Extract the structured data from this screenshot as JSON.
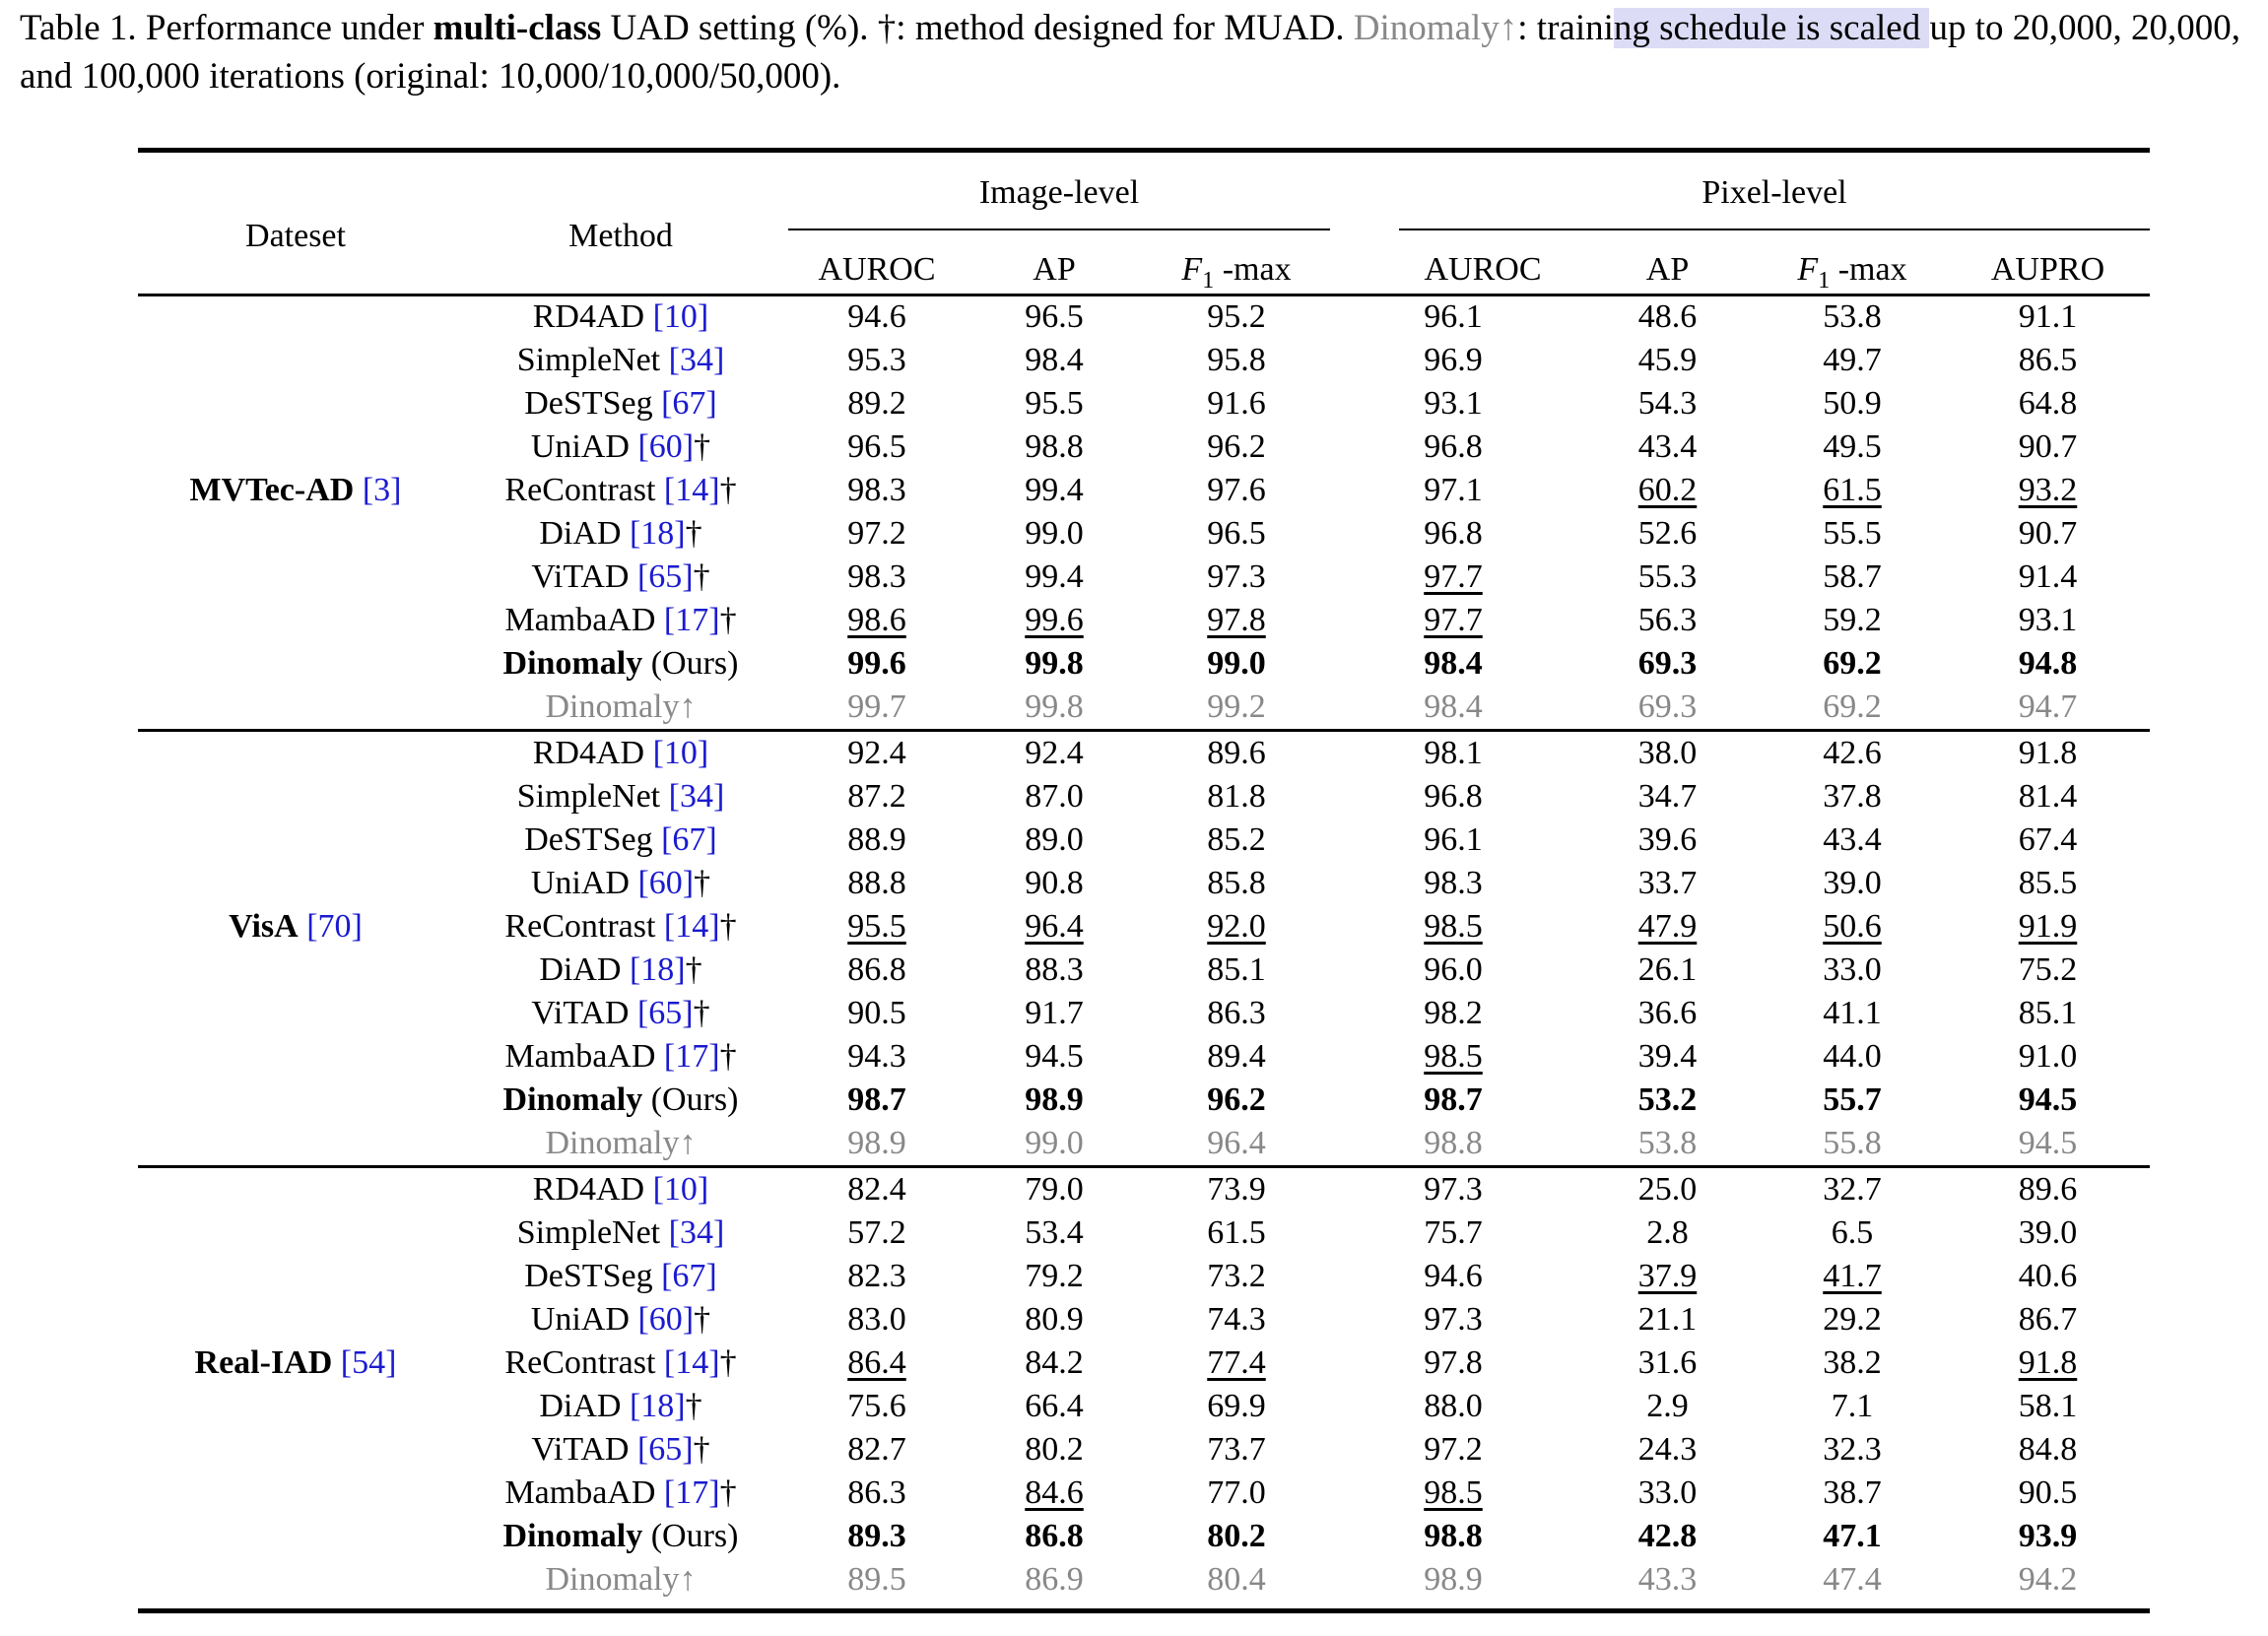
{
  "caption": {
    "part1": "Table 1. Performance under ",
    "bold": "multi-class",
    "part2": " UAD setting (%). †: method designed for MUAD. ",
    "gray": "Dinomaly↑",
    "part3": ": traini",
    "highlight": "ng schedule is scaled ",
    "part4": "up to 20,000, 20,000, and 100,000 iterations (original: 10,000/10,000/50,000)."
  },
  "header": {
    "dataset": "Dateset",
    "method": "Method",
    "image_level": "Image-level",
    "pixel_level": "Pixel-level",
    "columns": [
      "AUROC",
      "AP",
      "F1-max",
      "AUROC",
      "AP",
      "F1-max",
      "AUPRO"
    ],
    "f1_letter": "F",
    "f1_sub": "1",
    "f1_suffix": " -max"
  },
  "groups": [
    {
      "dataset_name": "MVTec-AD",
      "dataset_ref": "[3]",
      "rows": [
        {
          "method": "RD4AD ",
          "ref": "[10]",
          "dagger": "",
          "style": "normal",
          "values": [
            "94.6",
            "96.5",
            "95.2",
            "96.1",
            "48.6",
            "53.8",
            "91.1"
          ],
          "underline": [
            false,
            false,
            false,
            false,
            false,
            false,
            false
          ]
        },
        {
          "method": "SimpleNet ",
          "ref": "[34]",
          "dagger": "",
          "style": "normal",
          "values": [
            "95.3",
            "98.4",
            "95.8",
            "96.9",
            "45.9",
            "49.7",
            "86.5"
          ],
          "underline": [
            false,
            false,
            false,
            false,
            false,
            false,
            false
          ]
        },
        {
          "method": "DeSTSeg ",
          "ref": "[67]",
          "dagger": "",
          "style": "normal",
          "values": [
            "89.2",
            "95.5",
            "91.6",
            "93.1",
            "54.3",
            "50.9",
            "64.8"
          ],
          "underline": [
            false,
            false,
            false,
            false,
            false,
            false,
            false
          ]
        },
        {
          "method": "UniAD ",
          "ref": "[60]",
          "dagger": "†",
          "style": "normal",
          "values": [
            "96.5",
            "98.8",
            "96.2",
            "96.8",
            "43.4",
            "49.5",
            "90.7"
          ],
          "underline": [
            false,
            false,
            false,
            false,
            false,
            false,
            false
          ]
        },
        {
          "method": "ReContrast ",
          "ref": "[14]",
          "dagger": "†",
          "style": "normal",
          "values": [
            "98.3",
            "99.4",
            "97.6",
            "97.1",
            "60.2",
            "61.5",
            "93.2"
          ],
          "underline": [
            false,
            false,
            false,
            false,
            true,
            true,
            true
          ]
        },
        {
          "method": "DiAD ",
          "ref": "[18]",
          "dagger": "†",
          "style": "normal",
          "values": [
            "97.2",
            "99.0",
            "96.5",
            "96.8",
            "52.6",
            "55.5",
            "90.7"
          ],
          "underline": [
            false,
            false,
            false,
            false,
            false,
            false,
            false
          ]
        },
        {
          "method": "ViTAD ",
          "ref": "[65]",
          "dagger": "†",
          "style": "normal",
          "values": [
            "98.3",
            "99.4",
            "97.3",
            "97.7",
            "55.3",
            "58.7",
            "91.4"
          ],
          "underline": [
            false,
            false,
            false,
            true,
            false,
            false,
            false
          ]
        },
        {
          "method": "MambaAD ",
          "ref": "[17]",
          "dagger": "†",
          "style": "normal",
          "values": [
            "98.6",
            "99.6",
            "97.8",
            "97.7",
            "56.3",
            "59.2",
            "93.1"
          ],
          "underline": [
            true,
            true,
            true,
            true,
            false,
            false,
            false
          ]
        },
        {
          "method": "Dinomaly",
          "ref": "",
          "suffix": " (Ours)",
          "dagger": "",
          "style": "ours",
          "values": [
            "99.6",
            "99.8",
            "99.0",
            "98.4",
            "69.3",
            "69.2",
            "94.8"
          ],
          "underline": [
            false,
            false,
            false,
            false,
            false,
            false,
            false
          ]
        },
        {
          "method": "Dinomaly↑",
          "ref": "",
          "dagger": "",
          "style": "gray",
          "values": [
            "99.7",
            "99.8",
            "99.2",
            "98.4",
            "69.3",
            "69.2",
            "94.7"
          ],
          "underline": [
            false,
            false,
            false,
            false,
            false,
            false,
            false
          ]
        }
      ]
    },
    {
      "dataset_name": "VisA",
      "dataset_ref": "[70]",
      "rows": [
        {
          "method": "RD4AD ",
          "ref": "[10]",
          "dagger": "",
          "style": "normal",
          "values": [
            "92.4",
            "92.4",
            "89.6",
            "98.1",
            "38.0",
            "42.6",
            "91.8"
          ],
          "underline": [
            false,
            false,
            false,
            false,
            false,
            false,
            false
          ]
        },
        {
          "method": "SimpleNet ",
          "ref": "[34]",
          "dagger": "",
          "style": "normal",
          "values": [
            "87.2",
            "87.0",
            "81.8",
            "96.8",
            "34.7",
            "37.8",
            "81.4"
          ],
          "underline": [
            false,
            false,
            false,
            false,
            false,
            false,
            false
          ]
        },
        {
          "method": "DeSTSeg ",
          "ref": "[67]",
          "dagger": "",
          "style": "normal",
          "values": [
            "88.9",
            "89.0",
            "85.2",
            "96.1",
            "39.6",
            "43.4",
            "67.4"
          ],
          "underline": [
            false,
            false,
            false,
            false,
            false,
            false,
            false
          ]
        },
        {
          "method": "UniAD ",
          "ref": "[60]",
          "dagger": "†",
          "style": "normal",
          "values": [
            "88.8",
            "90.8",
            "85.8",
            "98.3",
            "33.7",
            "39.0",
            "85.5"
          ],
          "underline": [
            false,
            false,
            false,
            false,
            false,
            false,
            false
          ]
        },
        {
          "method": "ReContrast ",
          "ref": "[14]",
          "dagger": "†",
          "style": "normal",
          "values": [
            "95.5",
            "96.4",
            "92.0",
            "98.5",
            "47.9",
            "50.6",
            "91.9"
          ],
          "underline": [
            true,
            true,
            true,
            true,
            true,
            true,
            true
          ]
        },
        {
          "method": "DiAD ",
          "ref": "[18]",
          "dagger": "†",
          "style": "normal",
          "values": [
            "86.8",
            "88.3",
            "85.1",
            "96.0",
            "26.1",
            "33.0",
            "75.2"
          ],
          "underline": [
            false,
            false,
            false,
            false,
            false,
            false,
            false
          ]
        },
        {
          "method": "ViTAD ",
          "ref": "[65]",
          "dagger": "†",
          "style": "normal",
          "values": [
            "90.5",
            "91.7",
            "86.3",
            "98.2",
            "36.6",
            "41.1",
            "85.1"
          ],
          "underline": [
            false,
            false,
            false,
            false,
            false,
            false,
            false
          ]
        },
        {
          "method": "MambaAD ",
          "ref": "[17]",
          "dagger": "†",
          "style": "normal",
          "values": [
            "94.3",
            "94.5",
            "89.4",
            "98.5",
            "39.4",
            "44.0",
            "91.0"
          ],
          "underline": [
            false,
            false,
            false,
            true,
            false,
            false,
            false
          ]
        },
        {
          "method": "Dinomaly",
          "ref": "",
          "suffix": " (Ours)",
          "dagger": "",
          "style": "ours",
          "values": [
            "98.7",
            "98.9",
            "96.2",
            "98.7",
            "53.2",
            "55.7",
            "94.5"
          ],
          "underline": [
            false,
            false,
            false,
            false,
            false,
            false,
            false
          ]
        },
        {
          "method": "Dinomaly↑",
          "ref": "",
          "dagger": "",
          "style": "gray",
          "values": [
            "98.9",
            "99.0",
            "96.4",
            "98.8",
            "53.8",
            "55.8",
            "94.5"
          ],
          "underline": [
            false,
            false,
            false,
            false,
            false,
            false,
            false
          ]
        }
      ]
    },
    {
      "dataset_name": "Real-IAD",
      "dataset_ref": "[54]",
      "rows": [
        {
          "method": "RD4AD ",
          "ref": "[10]",
          "dagger": "",
          "style": "normal",
          "values": [
            "82.4",
            "79.0",
            "73.9",
            "97.3",
            "25.0",
            "32.7",
            "89.6"
          ],
          "underline": [
            false,
            false,
            false,
            false,
            false,
            false,
            false
          ]
        },
        {
          "method": "SimpleNet ",
          "ref": "[34]",
          "dagger": "",
          "style": "normal",
          "values": [
            "57.2",
            "53.4",
            "61.5",
            "75.7",
            "2.8",
            "6.5",
            "39.0"
          ],
          "underline": [
            false,
            false,
            false,
            false,
            false,
            false,
            false
          ]
        },
        {
          "method": "DeSTSeg ",
          "ref": "[67]",
          "dagger": "",
          "style": "normal",
          "values": [
            "82.3",
            "79.2",
            "73.2",
            "94.6",
            "37.9",
            "41.7",
            "40.6"
          ],
          "underline": [
            false,
            false,
            false,
            false,
            true,
            true,
            false
          ]
        },
        {
          "method": "UniAD ",
          "ref": "[60]",
          "dagger": "†",
          "style": "normal",
          "values": [
            "83.0",
            "80.9",
            "74.3",
            "97.3",
            "21.1",
            "29.2",
            "86.7"
          ],
          "underline": [
            false,
            false,
            false,
            false,
            false,
            false,
            false
          ]
        },
        {
          "method": "ReContrast ",
          "ref": "[14]",
          "dagger": "†",
          "style": "normal",
          "values": [
            "86.4",
            "84.2",
            "77.4",
            "97.8",
            "31.6",
            "38.2",
            "91.8"
          ],
          "underline": [
            true,
            false,
            true,
            false,
            false,
            false,
            true
          ]
        },
        {
          "method": "DiAD ",
          "ref": "[18]",
          "dagger": "†",
          "style": "normal",
          "values": [
            "75.6",
            "66.4",
            "69.9",
            "88.0",
            "2.9",
            "7.1",
            "58.1"
          ],
          "underline": [
            false,
            false,
            false,
            false,
            false,
            false,
            false
          ]
        },
        {
          "method": "ViTAD ",
          "ref": "[65]",
          "dagger": "†",
          "style": "normal",
          "values": [
            "82.7",
            "80.2",
            "73.7",
            "97.2",
            "24.3",
            "32.3",
            "84.8"
          ],
          "underline": [
            false,
            false,
            false,
            false,
            false,
            false,
            false
          ]
        },
        {
          "method": "MambaAD ",
          "ref": "[17]",
          "dagger": "†",
          "style": "normal",
          "values": [
            "86.3",
            "84.6",
            "77.0",
            "98.5",
            "33.0",
            "38.7",
            "90.5"
          ],
          "underline": [
            false,
            true,
            false,
            true,
            false,
            false,
            false
          ]
        },
        {
          "method": "Dinomaly",
          "ref": "",
          "suffix": " (Ours)",
          "dagger": "",
          "style": "ours",
          "values": [
            "89.3",
            "86.8",
            "80.2",
            "98.8",
            "42.8",
            "47.1",
            "93.9"
          ],
          "underline": [
            false,
            false,
            false,
            false,
            false,
            false,
            false
          ]
        },
        {
          "method": "Dinomaly↑",
          "ref": "",
          "dagger": "",
          "style": "gray",
          "values": [
            "89.5",
            "86.9",
            "80.4",
            "98.9",
            "43.3",
            "47.4",
            "94.2"
          ],
          "underline": [
            false,
            false,
            false,
            false,
            false,
            false,
            false
          ]
        }
      ]
    }
  ]
}
